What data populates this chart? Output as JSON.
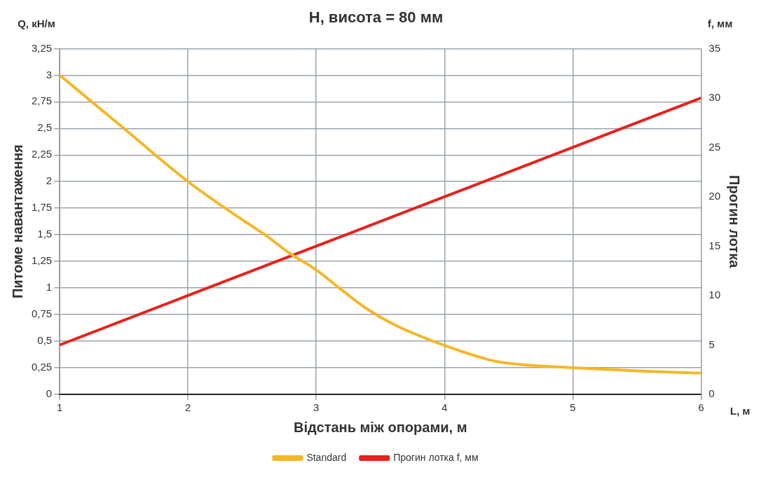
{
  "chart_data": {
    "type": "line",
    "title": "H, висота = 80 мм",
    "xlabel": "Відстань між опорами, м",
    "ylabel": "Питоме навантаження",
    "y2label": "Прогин лотка",
    "annotations": [
      "Q, кН/м",
      "f, мм",
      "L, м"
    ],
    "xlim": [
      1,
      6
    ],
    "xticks": [
      1,
      2,
      3,
      4,
      5,
      6
    ],
    "ylim": [
      0,
      3.25
    ],
    "yticks": [
      0,
      {
        "value": 0.25,
        "label": "0,25"
      },
      {
        "value": 0.5,
        "label": "0,5"
      },
      {
        "value": 0.75,
        "label": "0,75"
      },
      1,
      {
        "value": 1.25,
        "label": "1,25"
      },
      {
        "value": 1.5,
        "label": "1,5"
      },
      {
        "value": 1.75,
        "label": "1,75"
      },
      2,
      {
        "value": 2.25,
        "label": "2,25"
      },
      {
        "value": 2.5,
        "label": "2,5"
      },
      {
        "value": 2.75,
        "label": "2,75"
      },
      3,
      {
        "value": 3.25,
        "label": "3,25"
      }
    ],
    "y2lim": [
      0,
      35
    ],
    "y2ticks": [
      0,
      5,
      10,
      15,
      20,
      25,
      30,
      35
    ],
    "grid": true,
    "legend": "bottom",
    "marker": "none",
    "series": [
      {
        "name": "Standard",
        "color": "#f5b724",
        "x": [
          1,
          1.5,
          2,
          2.4,
          2.6,
          2.8,
          3,
          3.2,
          3.4,
          3.6,
          4,
          4.4,
          4.6,
          5,
          5.5,
          6
        ],
        "values": [
          3,
          2.5,
          2,
          1.66,
          1.5,
          1.32,
          1.17,
          0.98,
          0.8,
          0.66,
          0.46,
          0.31,
          0.28,
          0.25,
          0.22,
          0.2
        ]
      },
      {
        "name": "Прогин лотка f, мм",
        "color": "#e8211c",
        "axis": "y2",
        "x": [
          1,
          2,
          3,
          4,
          5,
          6
        ],
        "values": [
          5,
          10,
          15,
          20,
          25,
          30
        ]
      }
    ]
  }
}
